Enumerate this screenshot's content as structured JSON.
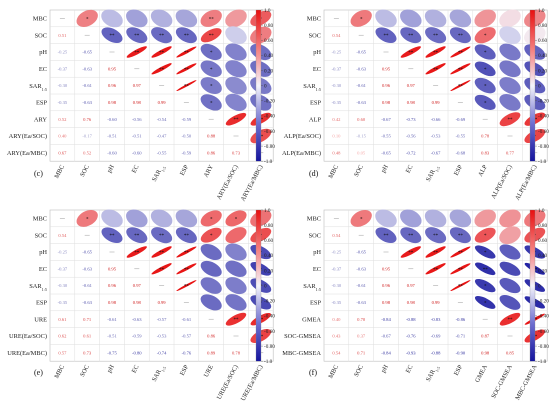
{
  "figure": {
    "colorbar": {
      "ticks": [
        "1.0",
        "0.80",
        "0.60",
        "0.40",
        "0.20",
        "0",
        "-0.20",
        "-0.40",
        "-0.60",
        "-0.80",
        "-1.0"
      ],
      "colors": {
        "positive": "#ee1c1c",
        "neutral": "#f4f4fb",
        "negative": "#1c1cb4"
      }
    }
  },
  "chart_data": [
    {
      "type": "heatmap",
      "panel_label": "(c)",
      "row_labels": [
        "MBC",
        "SOC",
        "pH",
        "EC",
        "SAR1:5",
        "ESP",
        "ARY",
        "ARY(Ea/SOC)",
        "ARY(Ea/MBC)"
      ],
      "col_labels": [
        "MBC",
        "SOC",
        "pH",
        "EC",
        "SAR1:5",
        "ESP",
        "ARY",
        "ARY(Ea/SOC)",
        "ARY(Ea/MBC)"
      ],
      "lower": [
        [
          0.51
        ],
        [
          -0.25,
          -0.65
        ],
        [
          -0.37,
          -0.63,
          0.95
        ],
        [
          -0.3,
          -0.61,
          0.96,
          0.97
        ],
        [
          -0.35,
          -0.63,
          0.98,
          0.98,
          0.99
        ],
        [
          0.52,
          0.76,
          -0.6,
          -0.56,
          -0.54,
          -0.59
        ],
        [
          0.4,
          -0.17,
          -0.51,
          -0.51,
          -0.47,
          -0.5,
          0.88
        ],
        [
          0.67,
          0.52,
          -0.6,
          -0.6,
          -0.55,
          -0.59,
          0.86,
          0.73
        ]
      ],
      "upper_stars": [
        [
          "0,1",
          "*"
        ],
        [
          "0,6",
          "**"
        ],
        [
          "0,8",
          "*"
        ],
        [
          "1,2",
          "**"
        ],
        [
          "1,3",
          "**"
        ],
        [
          "1,4",
          "**"
        ],
        [
          "1,5",
          "**"
        ],
        [
          "1,6",
          "**"
        ],
        [
          "1,8",
          "*"
        ],
        [
          "2,3",
          "**"
        ],
        [
          "2,4",
          "**"
        ],
        [
          "2,5",
          "**"
        ],
        [
          "2,6",
          "*"
        ],
        [
          "3,4",
          "**"
        ],
        [
          "3,5",
          "**"
        ],
        [
          "3,6",
          "*"
        ],
        [
          "4,5",
          "**"
        ],
        [
          "4,6",
          "*"
        ],
        [
          "5,6",
          "*"
        ],
        [
          "6,7",
          "**"
        ],
        [
          "6,8",
          "**"
        ],
        [
          "7,8",
          "**"
        ]
      ]
    },
    {
      "type": "heatmap",
      "panel_label": "(d)",
      "row_labels": [
        "MBC",
        "SOC",
        "pH",
        "EC",
        "SAR1:5",
        "ESP",
        "ALP",
        "ALP(Ea/SOC)",
        "ALP(Ea/MBC)"
      ],
      "col_labels": [
        "MBC",
        "SOC",
        "pH",
        "EC",
        "SAR1:5",
        "ESP",
        "ALP",
        "ALP(Ea/SOC)",
        "ALP(Ea/MBC)"
      ],
      "lower": [
        [
          0.54
        ],
        [
          -0.25,
          -0.65
        ],
        [
          -0.37,
          -0.63,
          0.95
        ],
        [
          -0.3,
          -0.61,
          0.96,
          0.97
        ],
        [
          -0.35,
          -0.63,
          0.98,
          0.98,
          0.99
        ],
        [
          0.42,
          0.6,
          -0.67,
          -0.73,
          -0.66,
          -0.69
        ],
        [
          0.1,
          -0.15,
          -0.55,
          -0.56,
          -0.53,
          -0.55,
          0.78
        ],
        [
          0.48,
          0.05,
          -0.65,
          -0.72,
          -0.67,
          -0.68,
          0.83,
          0.77
        ]
      ],
      "upper_stars": [
        [
          "0,1",
          "*"
        ],
        [
          "1,2",
          "**"
        ],
        [
          "1,3",
          "**"
        ],
        [
          "1,4",
          "**"
        ],
        [
          "1,5",
          "**"
        ],
        [
          "1,6",
          "*"
        ],
        [
          "2,3",
          "**"
        ],
        [
          "2,4",
          "**"
        ],
        [
          "2,5",
          "**"
        ],
        [
          "2,6",
          "*"
        ],
        [
          "3,4",
          "**"
        ],
        [
          "3,5",
          "**"
        ],
        [
          "3,6",
          "*"
        ],
        [
          "4,5",
          "**"
        ],
        [
          "4,6",
          "*"
        ],
        [
          "5,6",
          "*"
        ],
        [
          "6,7",
          "**"
        ],
        [
          "6,8",
          "**"
        ],
        [
          "7,8",
          "*"
        ]
      ]
    },
    {
      "type": "heatmap",
      "panel_label": "(e)",
      "row_labels": [
        "MBC",
        "SOC",
        "pH",
        "EC",
        "SAR1:5",
        "ESP",
        "URE",
        "URE(Ea/SOC)",
        "URE(Ea/MBC)"
      ],
      "col_labels": [
        "MBC",
        "SOC",
        "pH",
        "EC",
        "SAR1:5",
        "ESP",
        "URE",
        "URE(Ea/SOC)",
        "URE(Ea/MBC)"
      ],
      "lower": [
        [
          0.54
        ],
        [
          -0.25,
          -0.65
        ],
        [
          -0.37,
          -0.63,
          0.95
        ],
        [
          -0.3,
          -0.61,
          0.96,
          0.97
        ],
        [
          -0.35,
          -0.63,
          0.98,
          0.98,
          0.99
        ],
        [
          0.61,
          0.71,
          -0.61,
          -0.63,
          -0.57,
          -0.61
        ],
        [
          0.62,
          0.61,
          -0.51,
          -0.59,
          -0.53,
          -0.57,
          0.86
        ],
        [
          0.57,
          0.73,
          -0.75,
          -0.8,
          -0.74,
          -0.76,
          0.89,
          0.78
        ]
      ],
      "upper_stars": [
        [
          "0,1",
          "*"
        ],
        [
          "0,6",
          "*"
        ],
        [
          "0,7",
          "*"
        ],
        [
          "1,2",
          "**"
        ],
        [
          "1,3",
          "**"
        ],
        [
          "1,4",
          "**"
        ],
        [
          "1,5",
          "**"
        ],
        [
          "1,6",
          "*"
        ],
        [
          "1,8",
          "*"
        ],
        [
          "2,3",
          "**"
        ],
        [
          "2,4",
          "**"
        ],
        [
          "2,5",
          "**"
        ],
        [
          "2,8",
          "*"
        ],
        [
          "3,4",
          "**"
        ],
        [
          "3,5",
          "**"
        ],
        [
          "3,8",
          "*"
        ],
        [
          "4,5",
          "**"
        ],
        [
          "4,8",
          "*"
        ],
        [
          "5,8",
          "*"
        ],
        [
          "6,7",
          "**"
        ],
        [
          "6,8",
          "**"
        ],
        [
          "7,8",
          "**"
        ]
      ]
    },
    {
      "type": "heatmap",
      "panel_label": "(f)",
      "row_labels": [
        "MBC",
        "SOC",
        "pH",
        "EC",
        "SAR1:5",
        "ESP",
        "GMEA",
        "SOC-GMSEA",
        "MBC-GMSEA"
      ],
      "col_labels": [
        "MBC",
        "SOC",
        "pH",
        "EC",
        "SAR1:5",
        "ESP",
        "GMEA",
        "SOC-GMSEA",
        "MBC-GMSEA"
      ],
      "lower": [
        [
          0.54
        ],
        [
          -0.25,
          -0.65
        ],
        [
          -0.37,
          -0.63,
          0.95
        ],
        [
          -0.3,
          -0.61,
          0.96,
          0.97
        ],
        [
          -0.35,
          -0.63,
          0.98,
          0.98,
          0.99
        ],
        [
          0.4,
          0.7,
          -0.84,
          -0.88,
          -0.83,
          -0.86
        ],
        [
          0.43,
          0.37,
          -0.67,
          -0.76,
          -0.69,
          -0.71,
          0.87
        ],
        [
          0.54,
          0.71,
          -0.84,
          -0.93,
          -0.88,
          -0.9,
          0.98,
          0.85
        ]
      ],
      "upper_stars": [
        [
          "0,1",
          "*"
        ],
        [
          "1,2",
          "**"
        ],
        [
          "1,3",
          "**"
        ],
        [
          "1,4",
          "**"
        ],
        [
          "1,5",
          "**"
        ],
        [
          "1,6",
          "*"
        ],
        [
          "1,8",
          "*"
        ],
        [
          "2,3",
          "**"
        ],
        [
          "2,4",
          "**"
        ],
        [
          "2,5",
          "**"
        ],
        [
          "2,6",
          "*"
        ],
        [
          "2,8",
          "*"
        ],
        [
          "3,4",
          "**"
        ],
        [
          "3,5",
          "**"
        ],
        [
          "3,6",
          "**"
        ],
        [
          "3,8",
          "**"
        ],
        [
          "4,5",
          "**"
        ],
        [
          "4,6",
          "*"
        ],
        [
          "4,8",
          "*"
        ],
        [
          "5,6",
          "*"
        ],
        [
          "5,8",
          "*"
        ],
        [
          "6,7",
          "**"
        ],
        [
          "6,8",
          "**"
        ],
        [
          "7,8",
          "**"
        ]
      ]
    }
  ]
}
